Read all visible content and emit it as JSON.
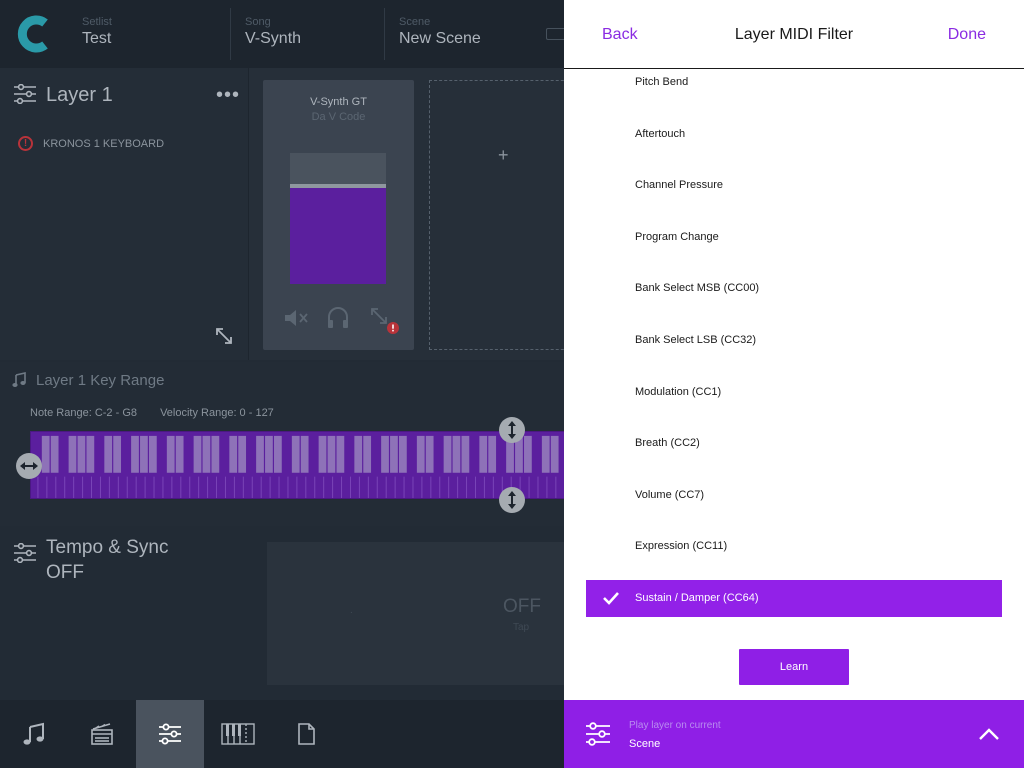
{
  "topbar": {
    "setlist": {
      "label": "Setlist",
      "value": "Test"
    },
    "song": {
      "label": "Song",
      "value": "V-Synth"
    },
    "scene": {
      "label": "Scene",
      "value": "New Scene"
    }
  },
  "layer": {
    "title": "Layer 1",
    "menu": "•••",
    "device": "KRONOS 1 KEYBOARD",
    "warning": "!"
  },
  "synth_card": {
    "name": "V-Synth GT",
    "subtitle": "Da V Code",
    "volume_fraction": 0.75
  },
  "add_card": {
    "symbol": "+"
  },
  "key_range": {
    "title": "Layer 1 Key Range",
    "note_range": "Note Range: C-2 - G8",
    "velocity_range": "Velocity Range: 0 - 127"
  },
  "tempo": {
    "title": "Tempo & Sync",
    "state": "OFF",
    "display": "OFF",
    "tap": "Tap",
    "dot": "."
  },
  "bottom_nav": {
    "items": [
      "music-note-icon",
      "scenes-icon",
      "sliders-icon",
      "keyboard-icon",
      "document-icon"
    ],
    "active_index": 2
  },
  "filter": {
    "back": "Back",
    "title": "Layer MIDI Filter",
    "done": "Done",
    "items": [
      {
        "label": "Pitch Bend",
        "checked": false
      },
      {
        "label": "Aftertouch",
        "checked": false
      },
      {
        "label": "Channel Pressure",
        "checked": false
      },
      {
        "label": "Program Change",
        "checked": false
      },
      {
        "label": "Bank Select MSB (CC00)",
        "checked": false
      },
      {
        "label": "Bank Select LSB (CC32)",
        "checked": false
      },
      {
        "label": "Modulation (CC1)",
        "checked": false
      },
      {
        "label": "Breath (CC2)",
        "checked": false
      },
      {
        "label": "Volume (CC7)",
        "checked": false
      },
      {
        "label": "Expression (CC11)",
        "checked": false
      },
      {
        "label": "Sustain / Damper (CC64)",
        "checked": true
      }
    ],
    "learn": "Learn",
    "footer": {
      "label": "Play layer on current",
      "value": "Scene"
    }
  },
  "colors": {
    "accent": "#8f1fe6",
    "background": "#222b35"
  }
}
